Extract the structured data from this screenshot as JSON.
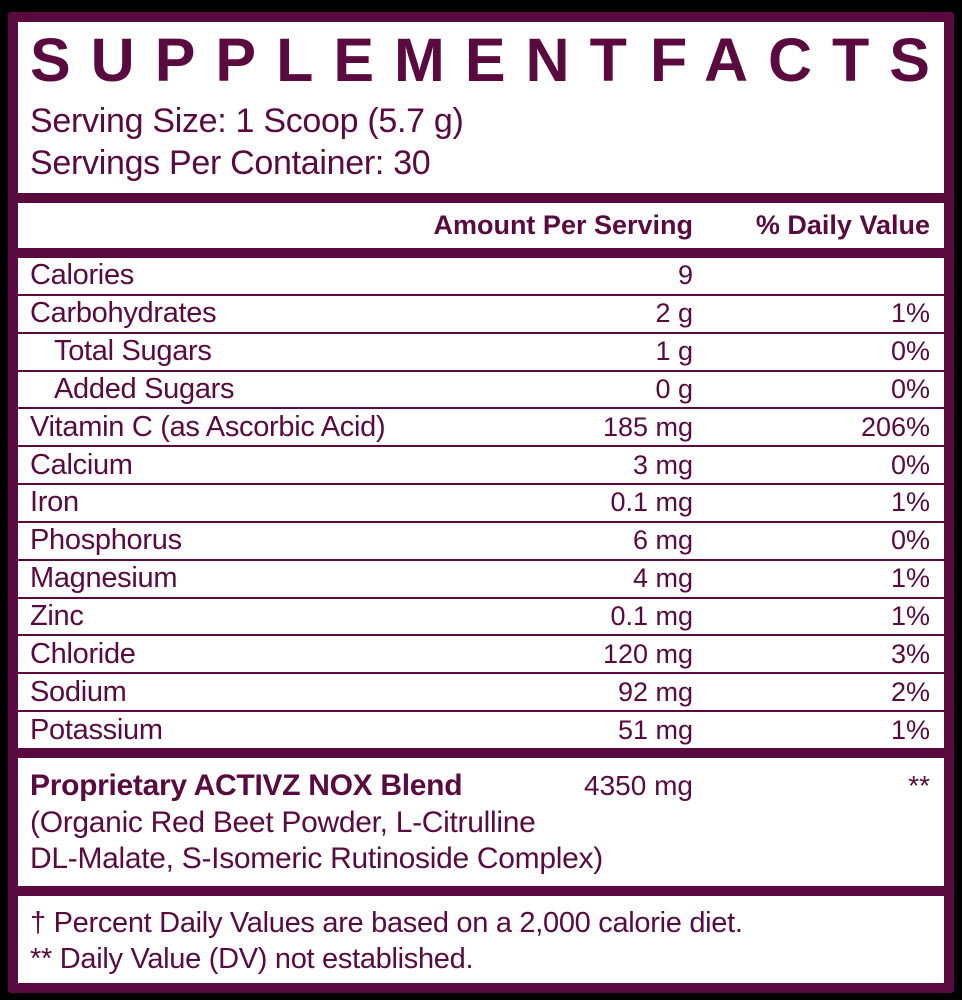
{
  "colors": {
    "accent": "#5a0a3e",
    "page_background": "#000000",
    "label_background": "#ffffff"
  },
  "header": {
    "title_word1": "SUPPLEMENT",
    "title_word2": "FACTS",
    "serving_size": "Serving Size: 1 Scoop (5.7 g)",
    "servings_per_container": "Servings Per Container: 30"
  },
  "table": {
    "col_amount": "Amount Per Serving",
    "col_dv": "% Daily Value",
    "rows": [
      {
        "name": "Calories",
        "amount": "9",
        "dv": ""
      },
      {
        "name": "Carbohydrates",
        "amount": "2 g",
        "dv": "1%"
      },
      {
        "name": "Total Sugars",
        "amount": "1 g",
        "dv": "0%"
      },
      {
        "name": "Added Sugars",
        "amount": "0 g",
        "dv": "0%"
      },
      {
        "name": "Vitamin C (as Ascorbic Acid)",
        "amount": "185 mg",
        "dv": "206%"
      },
      {
        "name": "Calcium",
        "amount": "3 mg",
        "dv": "0%"
      },
      {
        "name": "Iron",
        "amount": "0.1 mg",
        "dv": "1%"
      },
      {
        "name": "Phosphorus",
        "amount": "6 mg",
        "dv": "0%"
      },
      {
        "name": "Magnesium",
        "amount": "4 mg",
        "dv": "1%"
      },
      {
        "name": "Zinc",
        "amount": "0.1 mg",
        "dv": "1%"
      },
      {
        "name": "Chloride",
        "amount": "120 mg",
        "dv": "3%"
      },
      {
        "name": "Sodium",
        "amount": "92 mg",
        "dv": "2%"
      },
      {
        "name": "Potassium",
        "amount": "51 mg",
        "dv": "1%"
      }
    ]
  },
  "blend": {
    "name": "Proprietary ACTIVZ NOX Blend",
    "amount": "4350 mg",
    "dv": "**",
    "ingredients_line1": "(Organic Red Beet Powder, L-Citrulline",
    "ingredients_line2": "DL-Malate, S-Isomeric Rutinoside Complex)"
  },
  "footnotes": {
    "line1": "† Percent Daily Values are based on a 2,000 calorie diet.",
    "line2": "** Daily Value (DV) not established."
  }
}
